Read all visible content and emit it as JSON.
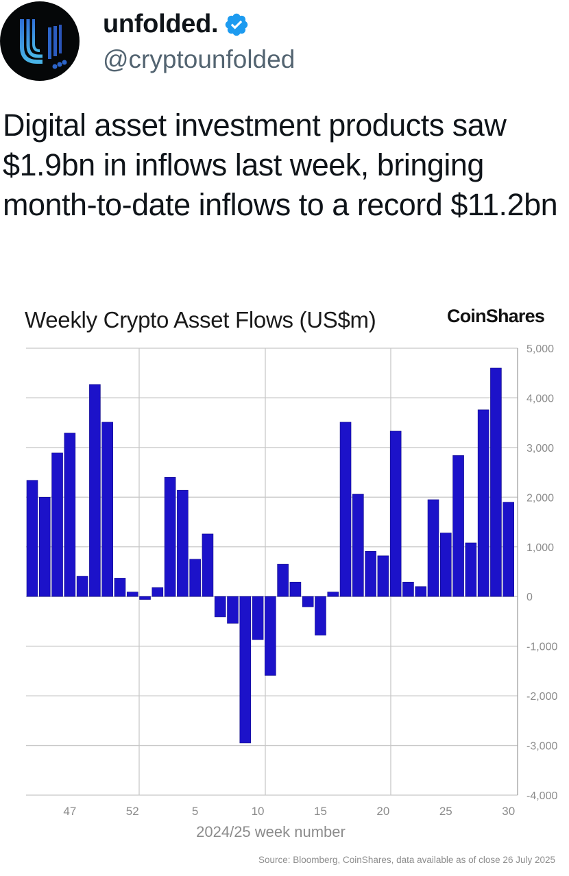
{
  "post": {
    "author": {
      "display_name": "unfolded.",
      "handle": "@cryptounfolded",
      "verified": true,
      "avatar_icon": "unfolded-u-logo",
      "verified_color": "#1d9bf0"
    },
    "text": "Digital asset investment products saw $1.9bn in inflows last week, bringing month-to-date inflows to a record $11.2bn"
  },
  "chart": {
    "title": "Weekly Crypto Asset Flows (US$m)",
    "brand": "CoinShares",
    "source": "Source: Bloomberg, CoinShares, data available as of close 26 July 2025"
  },
  "chart_data": {
    "type": "bar",
    "title": "Weekly Crypto Asset Flows (US$m)",
    "xlabel": "2024/25 week number",
    "ylabel": "US$m",
    "ylim": [
      -4000,
      5000
    ],
    "yticks": [
      5000,
      4000,
      3000,
      2000,
      1000,
      0,
      -1000,
      -2000,
      -3000,
      -4000
    ],
    "ytick_labels": [
      "5,000",
      "4,000",
      "3,000",
      "2,000",
      "1,000",
      "0",
      "-1,000",
      "-2,000",
      "-3,000",
      "-4,000"
    ],
    "xtick_labels": [
      "47",
      "52",
      "5",
      "10",
      "15",
      "20",
      "25",
      "30"
    ],
    "grid": true,
    "y_axis_position": "right",
    "bar_color": "#1c12c9",
    "categories": [
      "44",
      "45",
      "46",
      "47",
      "48",
      "49",
      "50",
      "51",
      "52",
      "1",
      "2",
      "3",
      "4",
      "5",
      "6",
      "7",
      "8",
      "9",
      "10",
      "11",
      "12",
      "13",
      "14",
      "15",
      "16",
      "17",
      "18",
      "19",
      "20",
      "21",
      "22",
      "23",
      "24",
      "25",
      "26",
      "27",
      "28",
      "29",
      "30"
    ],
    "values": [
      2340,
      2000,
      2890,
      3290,
      410,
      4270,
      3510,
      370,
      90,
      -60,
      180,
      2400,
      2140,
      750,
      1260,
      -410,
      -540,
      -2950,
      -870,
      -1590,
      650,
      290,
      -210,
      -780,
      90,
      3510,
      2060,
      910,
      820,
      3330,
      290,
      200,
      1950,
      1280,
      2840,
      1080,
      3760,
      4600,
      1900
    ]
  }
}
